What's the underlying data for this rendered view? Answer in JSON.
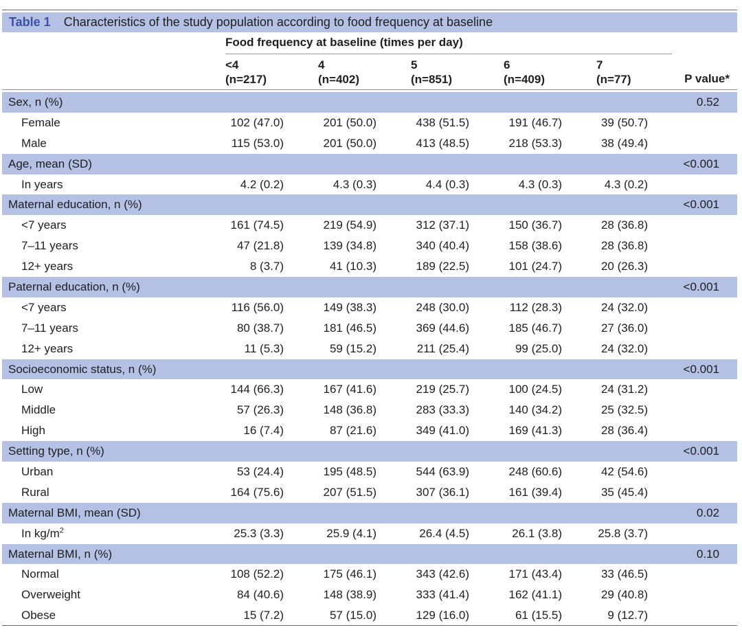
{
  "table": {
    "label": "Table 1",
    "caption": "Characteristics of the study population according to food frequency at baseline",
    "spanner": "Food frequency at baseline (times per day)",
    "columns": [
      {
        "head": "<4",
        "n": "(n=217)"
      },
      {
        "head": "4",
        "n": "(n=402)"
      },
      {
        "head": "5",
        "n": "(n=851)"
      },
      {
        "head": "6",
        "n": "(n=409)"
      },
      {
        "head": "7",
        "n": "(n=77)"
      }
    ],
    "p_header": "P value*",
    "rows": [
      {
        "type": "group",
        "label": "Sex, n (%)",
        "p": "0.52"
      },
      {
        "type": "sub",
        "label": "Female",
        "values": [
          "102 (47.0)",
          "201 (50.0)",
          "438 (51.5)",
          "191 (46.7)",
          "39 (50.7)"
        ]
      },
      {
        "type": "sub",
        "label": "Male",
        "values": [
          "115 (53.0)",
          "201 (50.0)",
          "413 (48.5)",
          "218 (53.3)",
          "38 (49.4)"
        ]
      },
      {
        "type": "group",
        "label": "Age, mean (SD)",
        "p": "<0.001"
      },
      {
        "type": "sub",
        "label": "In years",
        "values": [
          "4.2 (0.2)",
          "4.3 (0.3)",
          "4.4 (0.3)",
          "4.3 (0.3)",
          "4.3 (0.2)"
        ]
      },
      {
        "type": "group",
        "label": "Maternal education, n (%)",
        "p": "<0.001"
      },
      {
        "type": "sub",
        "label": "<7 years",
        "values": [
          "161 (74.5)",
          "219 (54.9)",
          "312 (37.1)",
          "150 (36.7)",
          "28 (36.8)"
        ]
      },
      {
        "type": "sub",
        "label": "7–11 years",
        "values": [
          "47 (21.8)",
          "139 (34.8)",
          "340 (40.4)",
          "158 (38.6)",
          "28 (36.8)"
        ]
      },
      {
        "type": "sub",
        "label": "12+ years",
        "values": [
          "8 (3.7)",
          "41 (10.3)",
          "189 (22.5)",
          "101 (24.7)",
          "20 (26.3)"
        ]
      },
      {
        "type": "group",
        "label": "Paternal education, n (%)",
        "p": "<0.001"
      },
      {
        "type": "sub",
        "label": "<7 years",
        "values": [
          "116 (56.0)",
          "149 (38.3)",
          "248 (30.0)",
          "112 (28.3)",
          "24 (32.0)"
        ]
      },
      {
        "type": "sub",
        "label": "7–11 years",
        "values": [
          "80 (38.7)",
          "181 (46.5)",
          "369 (44.6)",
          "185 (46.7)",
          "27 (36.0)"
        ]
      },
      {
        "type": "sub",
        "label": "12+ years",
        "values": [
          "11 (5.3)",
          "59 (15.2)",
          "211 (25.4)",
          "99 (25.0)",
          "24 (32.0)"
        ]
      },
      {
        "type": "group",
        "label": "Socioeconomic status, n (%)",
        "p": "<0.001"
      },
      {
        "type": "sub",
        "label": "Low",
        "values": [
          "144 (66.3)",
          "167 (41.6)",
          "219 (25.7)",
          "100 (24.5)",
          "24 (31.2)"
        ]
      },
      {
        "type": "sub",
        "label": "Middle",
        "values": [
          "57 (26.3)",
          "148 (36.8)",
          "283 (33.3)",
          "140 (34.2)",
          "25 (32.5)"
        ]
      },
      {
        "type": "sub",
        "label": "High",
        "values": [
          "16 (7.4)",
          "87 (21.6)",
          "349 (41.0)",
          "169 (41.3)",
          "28 (36.4)"
        ]
      },
      {
        "type": "group",
        "label": "Setting type, n (%)",
        "p": "<0.001"
      },
      {
        "type": "sub",
        "label": "Urban",
        "values": [
          "53 (24.4)",
          "195 (48.5)",
          "544 (63.9)",
          "248 (60.6)",
          "42 (54.6)"
        ]
      },
      {
        "type": "sub",
        "label": "Rural",
        "values": [
          "164 (75.6)",
          "207 (51.5)",
          "307 (36.1)",
          "161 (39.4)",
          "35 (45.4)"
        ]
      },
      {
        "type": "group",
        "label": "Maternal BMI, mean (SD)",
        "p": "0.02"
      },
      {
        "type": "sub",
        "label": "In kg/m",
        "sup": "2",
        "values": [
          "25.3 (3.3)",
          "25.9 (4.1)",
          "26.4 (4.5)",
          "26.1 (3.8)",
          "25.8 (3.7)"
        ]
      },
      {
        "type": "group",
        "label": "Maternal BMI, n (%)",
        "p": "0.10"
      },
      {
        "type": "sub",
        "label": "Normal",
        "values": [
          "108 (52.2)",
          "175 (46.1)",
          "343 (42.6)",
          "171 (43.4)",
          "33 (46.5)"
        ]
      },
      {
        "type": "sub",
        "label": "Overweight",
        "values": [
          "84 (40.6)",
          "148 (38.9)",
          "333 (41.4)",
          "162 (41.1)",
          "29 (40.8)"
        ]
      },
      {
        "type": "sub",
        "label": "Obese",
        "values": [
          "15 (7.2)",
          "57 (15.0)",
          "129 (16.0)",
          "61 (15.5)",
          "9 (12.7)"
        ]
      }
    ]
  }
}
